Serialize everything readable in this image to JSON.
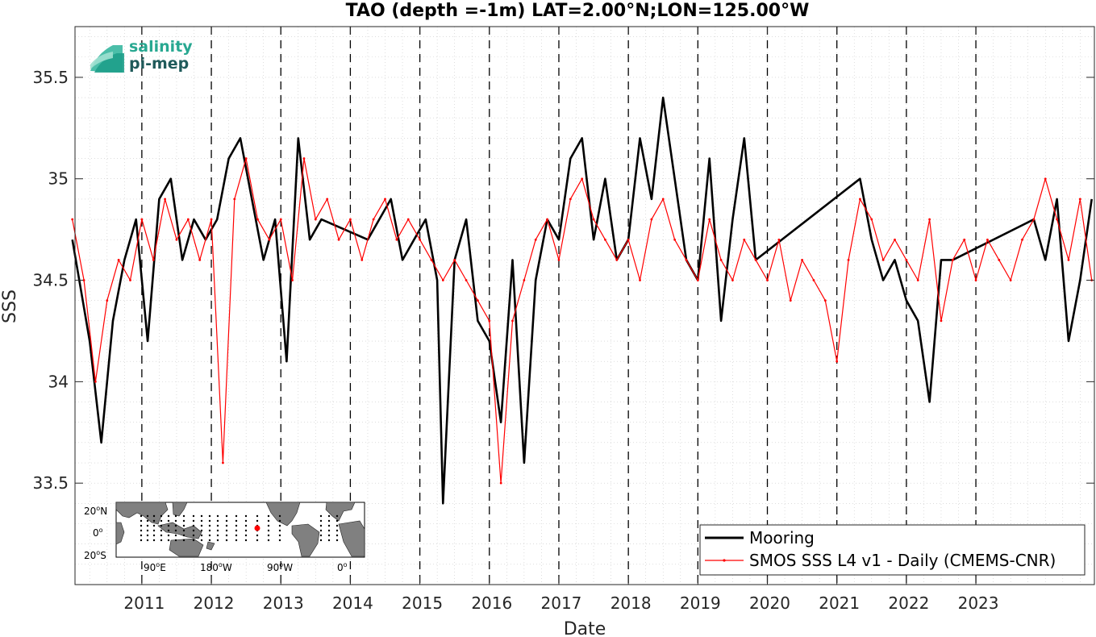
{
  "chart_data": {
    "type": "line",
    "title": "TAO (depth =-1m) LAT=2.00°N;LON=125.00°W",
    "xlabel": "Date",
    "ylabel": "SSS",
    "xlim": [
      "2010-01-15",
      "2024-09-15"
    ],
    "ylim": [
      33.0,
      35.75
    ],
    "x_tick_labels": [
      "2011",
      "2012",
      "2013",
      "2014",
      "2015",
      "2016",
      "2017",
      "2018",
      "2019",
      "2020",
      "2021",
      "2022",
      "2023"
    ],
    "y_tick_values": [
      33.5,
      34,
      34.5,
      35,
      35.5
    ],
    "y_tick_labels": [
      "33.5",
      "34",
      "34.5",
      "35",
      "35.5"
    ],
    "year_boundaries": [
      "2011",
      "2012",
      "2013",
      "2014",
      "2015",
      "2016",
      "2017",
      "2018",
      "2019",
      "2020",
      "2021",
      "2022",
      "2023"
    ],
    "grid": true,
    "legend_position": "bottom-right",
    "series": [
      {
        "name": "Mooring",
        "color": "#000000",
        "x": [
          "2010-01",
          "2010-04",
          "2010-06",
          "2010-08",
          "2010-10",
          "2010-12",
          "2011-02",
          "2011-04",
          "2011-06",
          "2011-08",
          "2011-10",
          "2011-12",
          "2012-02",
          "2012-04",
          "2012-06",
          "2012-08",
          "2012-10",
          "2012-12",
          "2013-02",
          "2013-04",
          "2013-06",
          "2013-08",
          "2014-04",
          "2014-06",
          "2014-08",
          "2014-10",
          "2014-12",
          "2015-02",
          "2015-04",
          "2015-05",
          "2015-07",
          "2015-09",
          "2015-11",
          "2016-01",
          "2016-03",
          "2016-05",
          "2016-07",
          "2016-09",
          "2016-11",
          "2017-01",
          "2017-03",
          "2017-05",
          "2017-07",
          "2017-09",
          "2017-11",
          "2018-01",
          "2018-03",
          "2018-05",
          "2018-07",
          "2018-09",
          "2018-11",
          "2019-01",
          "2019-03",
          "2019-05",
          "2019-07",
          "2019-09",
          "2019-11",
          "2021-05",
          "2021-07",
          "2021-09",
          "2021-11",
          "2022-01",
          "2022-03",
          "2022-05",
          "2022-07",
          "2022-09",
          "2023-11",
          "2024-01",
          "2024-03",
          "2024-05",
          "2024-07",
          "2024-09"
        ],
        "y": [
          34.7,
          34.2,
          33.7,
          34.3,
          34.6,
          34.8,
          34.2,
          34.9,
          35.0,
          34.6,
          34.8,
          34.7,
          34.8,
          35.1,
          35.2,
          34.9,
          34.6,
          34.8,
          34.1,
          35.2,
          34.7,
          34.8,
          34.7,
          34.8,
          34.9,
          34.6,
          34.7,
          34.8,
          34.5,
          33.4,
          34.6,
          34.8,
          34.3,
          34.2,
          33.8,
          34.6,
          33.6,
          34.5,
          34.8,
          34.7,
          35.1,
          35.2,
          34.7,
          35.0,
          34.6,
          34.7,
          35.2,
          34.9,
          35.4,
          35.0,
          34.6,
          34.5,
          35.1,
          34.3,
          34.8,
          35.2,
          34.6,
          35.0,
          34.7,
          34.5,
          34.6,
          34.4,
          34.3,
          33.9,
          34.6,
          34.6,
          34.8,
          34.6,
          34.9,
          34.2,
          34.5,
          34.9
        ]
      },
      {
        "name": "SMOS SSS L4 v1 - Daily (CMEMS-CNR)",
        "color": "#ff0000",
        "x": [
          "2010-01",
          "2010-03",
          "2010-05",
          "2010-07",
          "2010-09",
          "2010-11",
          "2011-01",
          "2011-03",
          "2011-05",
          "2011-07",
          "2011-09",
          "2011-11",
          "2012-01",
          "2012-03",
          "2012-05",
          "2012-07",
          "2012-09",
          "2012-11",
          "2013-01",
          "2013-03",
          "2013-05",
          "2013-07",
          "2013-09",
          "2013-11",
          "2014-01",
          "2014-03",
          "2014-05",
          "2014-07",
          "2014-09",
          "2014-11",
          "2015-01",
          "2015-03",
          "2015-05",
          "2015-07",
          "2015-09",
          "2015-11",
          "2016-01",
          "2016-03",
          "2016-05",
          "2016-07",
          "2016-09",
          "2016-11",
          "2017-01",
          "2017-03",
          "2017-05",
          "2017-07",
          "2017-09",
          "2017-11",
          "2018-01",
          "2018-03",
          "2018-05",
          "2018-07",
          "2018-09",
          "2018-11",
          "2019-01",
          "2019-03",
          "2019-05",
          "2019-07",
          "2019-09",
          "2019-11",
          "2020-01",
          "2020-03",
          "2020-05",
          "2020-07",
          "2020-09",
          "2020-11",
          "2021-01",
          "2021-03",
          "2021-05",
          "2021-07",
          "2021-09",
          "2021-11",
          "2022-01",
          "2022-03",
          "2022-05",
          "2022-07",
          "2022-09",
          "2022-11",
          "2023-01",
          "2023-03",
          "2023-05",
          "2023-07",
          "2023-09",
          "2023-11",
          "2024-01",
          "2024-03",
          "2024-05",
          "2024-07",
          "2024-09"
        ],
        "y": [
          34.8,
          34.5,
          34.0,
          34.4,
          34.6,
          34.5,
          34.8,
          34.6,
          34.9,
          34.7,
          34.8,
          34.6,
          34.8,
          33.6,
          34.9,
          35.1,
          34.8,
          34.7,
          34.8,
          34.5,
          35.1,
          34.8,
          34.9,
          34.7,
          34.8,
          34.6,
          34.8,
          34.9,
          34.7,
          34.8,
          34.7,
          34.6,
          34.5,
          34.6,
          34.5,
          34.4,
          34.3,
          33.5,
          34.3,
          34.5,
          34.7,
          34.8,
          34.6,
          34.9,
          35.0,
          34.8,
          34.7,
          34.6,
          34.7,
          34.5,
          34.8,
          34.9,
          34.7,
          34.6,
          34.5,
          34.8,
          34.6,
          34.5,
          34.7,
          34.6,
          34.5,
          34.7,
          34.4,
          34.6,
          34.5,
          34.4,
          34.1,
          34.6,
          34.9,
          34.8,
          34.6,
          34.7,
          34.6,
          34.5,
          34.8,
          34.3,
          34.6,
          34.7,
          34.5,
          34.7,
          34.6,
          34.5,
          34.7,
          34.8,
          35.0,
          34.8,
          34.6,
          34.9,
          34.5
        ]
      }
    ],
    "inset_map": {
      "lat_labels": [
        "20",
        "N",
        "0",
        "20",
        "S"
      ],
      "lon_labels": [
        "90",
        "E",
        "180",
        "W",
        "90",
        "W",
        "0"
      ],
      "degree": "o",
      "marker_color": "#ff0000"
    },
    "logo": {
      "line1": "salinity",
      "line2": "pi-mep"
    }
  }
}
